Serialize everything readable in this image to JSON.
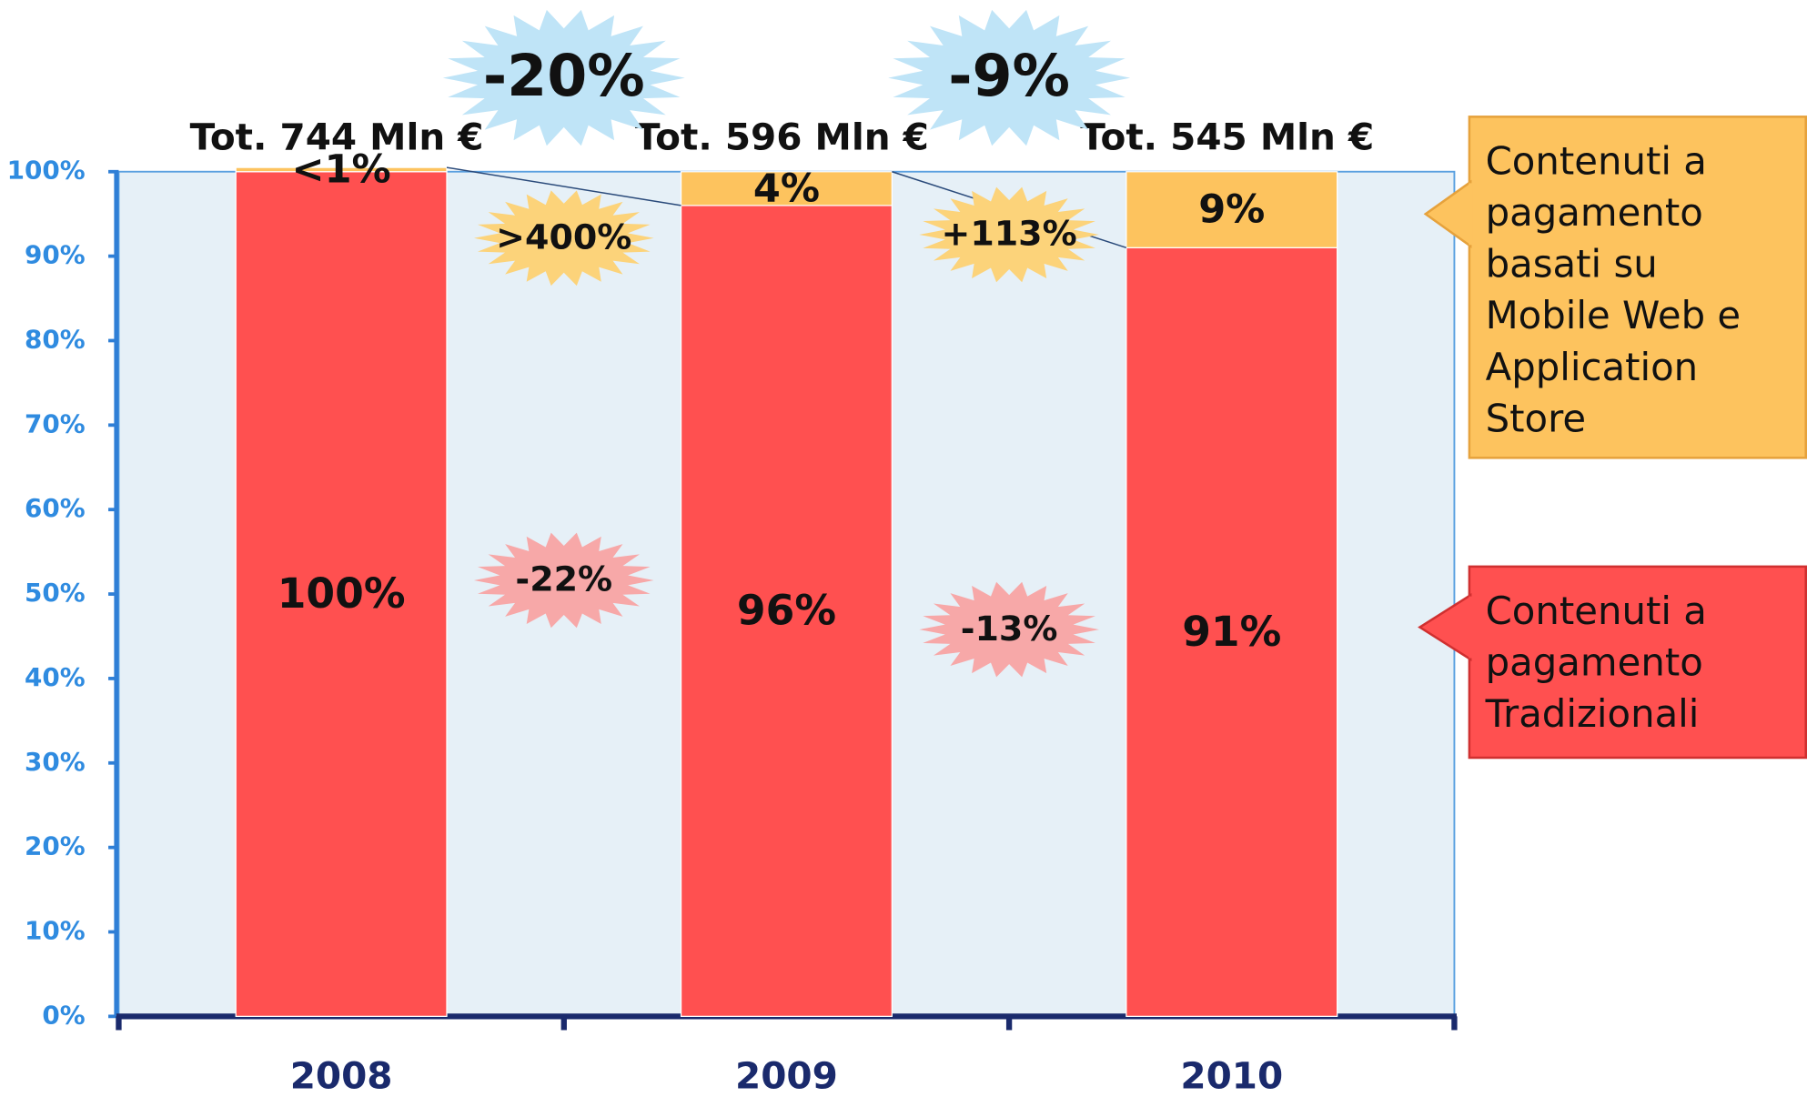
{
  "chart_data": {
    "type": "stacked_bar",
    "categories": [
      "2008",
      "2009",
      "2010"
    ],
    "totals": [
      "Tot. 744 Mln €",
      "Tot. 596 Mln €",
      "Tot. 545 Mln €"
    ],
    "total_changes": [
      "-20%",
      "-9%"
    ],
    "series": [
      {
        "name": "Contenuti a pagamento Tradizionali",
        "color": "#ff5050",
        "values": [
          100,
          96,
          91
        ],
        "value_labels": [
          "100%",
          "96%",
          "91%"
        ],
        "changes": [
          "-22%",
          "-13%"
        ]
      },
      {
        "name": "Contenuti a pagamento basati su Mobile Web e Application Store",
        "color": "#fdc35e",
        "values": [
          0.5,
          4,
          9
        ],
        "value_labels": [
          "<1%",
          "4%",
          "9%"
        ],
        "changes": [
          ">400%",
          "+113%"
        ]
      }
    ],
    "ylim": [
      0,
      100
    ],
    "yticks": [
      {
        "value": 0,
        "label": "0%"
      },
      {
        "value": 10,
        "label": "10%"
      },
      {
        "value": 20,
        "label": "20%"
      },
      {
        "value": 30,
        "label": "30%"
      },
      {
        "value": 40,
        "label": "40%"
      },
      {
        "value": 50,
        "label": "50%"
      },
      {
        "value": 60,
        "label": "60%"
      },
      {
        "value": 70,
        "label": "70%"
      },
      {
        "value": 80,
        "label": "80%"
      },
      {
        "value": 90,
        "label": "90%"
      },
      {
        "value": 100,
        "label": "100%"
      }
    ]
  }
}
